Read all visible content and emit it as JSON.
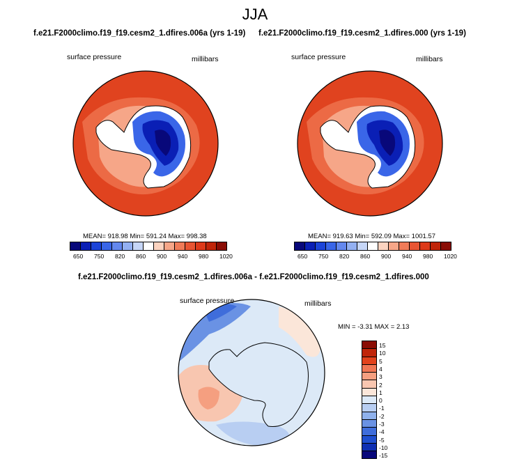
{
  "season": "JJA",
  "panels": [
    {
      "case_title": "f.e21.F2000climo.f19_f19.cesm2_1.dfires.006a (yrs 1-19)",
      "variable": "surface pressure",
      "units": "millibars",
      "stats": "MEAN= 918.98  Min= 591.24  Max= 998.38"
    },
    {
      "case_title": "f.e21.F2000climo.f19_f19.cesm2_1.dfires.000 (yrs 1-19)",
      "variable": "surface pressure",
      "units": "millibars",
      "stats": "MEAN= 919.63  Min= 592.09  Max= 1001.57"
    }
  ],
  "diff_panel": {
    "title": "f.e21.F2000climo.f19_f19.cesm2_1.dfires.006a - f.e21.F2000climo.f19_f19.cesm2_1.dfires.000",
    "variable": "surface pressure",
    "units": "millibars",
    "stats": "MIN = -3.31 MAX =  2.13"
  },
  "chart_data": [
    {
      "type": "heatmap",
      "projection": "south-polar-stereographic",
      "title": "f.e21.F2000climo.f19_f19.cesm2_1.dfires.006a (yrs 1-19)",
      "variable": "surface pressure",
      "units": "millibars",
      "mean": 918.98,
      "min": 591.24,
      "max": 998.38,
      "contour_levels": [
        650,
        700,
        750,
        800,
        820,
        840,
        860,
        880,
        900,
        920,
        940,
        960,
        980,
        1000,
        1020
      ],
      "tick_labels": [
        "650",
        "750",
        "820",
        "860",
        "900",
        "940",
        "980",
        "1020"
      ]
    },
    {
      "type": "heatmap",
      "projection": "south-polar-stereographic",
      "title": "f.e21.F2000climo.f19_f19.cesm2_1.dfires.000 (yrs 1-19)",
      "variable": "surface pressure",
      "units": "millibars",
      "mean": 919.63,
      "min": 592.09,
      "max": 1001.57,
      "contour_levels": [
        650,
        700,
        750,
        800,
        820,
        840,
        860,
        880,
        900,
        920,
        940,
        960,
        980,
        1000,
        1020
      ],
      "tick_labels": [
        "650",
        "750",
        "820",
        "860",
        "900",
        "940",
        "980",
        "1020"
      ]
    },
    {
      "type": "heatmap",
      "projection": "south-polar-stereographic",
      "title": "f.e21.F2000climo.f19_f19.cesm2_1.dfires.006a - f.e21.F2000climo.f19_f19.cesm2_1.dfires.000",
      "variable": "surface pressure",
      "units": "millibars",
      "min": -3.31,
      "max": 2.13,
      "contour_levels": [
        15,
        10,
        5,
        4,
        3,
        2,
        1,
        0,
        -1,
        -2,
        -3,
        -4,
        -5,
        -10,
        -15
      ],
      "tick_labels": [
        "15",
        "10",
        "5",
        "4",
        "3",
        "2",
        "1",
        "0",
        "-1",
        "-2",
        "-3",
        "-4",
        "-5",
        "-10",
        "-15"
      ]
    }
  ],
  "colors": {
    "abs_scale": [
      "#08087a",
      "#0a1fb5",
      "#1c44d8",
      "#3a66e8",
      "#6488ee",
      "#93b0f2",
      "#c6d6f7",
      "#ffffff",
      "#fbd3c0",
      "#f6a688",
      "#f07b58",
      "#e85533",
      "#dd3a1a",
      "#c0250a",
      "#8a0d05"
    ],
    "diff_scale": [
      "#8a0d05",
      "#c0250a",
      "#e2421c",
      "#f07654",
      "#f59f80",
      "#f8c6b0",
      "#fbe6d9",
      "#dce9f7",
      "#b8cef2",
      "#8fb1ec",
      "#6a92e4",
      "#3f6ddb",
      "#1f4fd0",
      "#0e2fb3",
      "#08087a"
    ],
    "land_fill": "#d6e8fb",
    "ocean_base": "#e0431f"
  }
}
